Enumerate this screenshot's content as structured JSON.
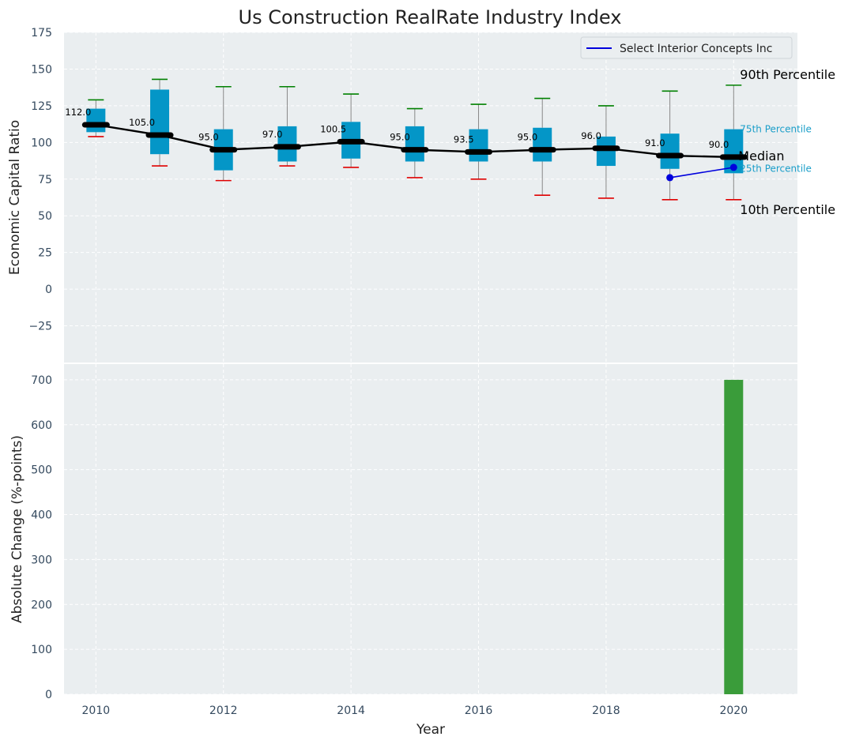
{
  "colors": {
    "panel_bg": "#eaeef0",
    "grid": "#ffffff",
    "box": "#0496c7",
    "whisker": "#888888",
    "cap_high": "#008000",
    "cap_low": "#e00000",
    "median_line": "#000000",
    "company_line": "#0000dd",
    "bar": "#3a9c3a",
    "pct_small_text": "#1a9ec9"
  },
  "chart_data": [
    {
      "type": "box",
      "title": "Us Construction RealRate Industry Index",
      "xlabel": "",
      "ylabel": "Economic Capital Ratio",
      "xlim": [
        2009.5,
        2021
      ],
      "ylim": [
        -50,
        175
      ],
      "yticks": [
        -25,
        0,
        25,
        50,
        75,
        100,
        125,
        150,
        175
      ],
      "ytick_labels": [
        "−25",
        "0",
        "25",
        "50",
        "75",
        "100",
        "125",
        "150",
        "175"
      ],
      "grid": true,
      "years": [
        2010,
        2011,
        2012,
        2013,
        2014,
        2015,
        2016,
        2017,
        2018,
        2019,
        2020
      ],
      "p10": [
        104,
        84,
        74,
        84,
        83,
        76,
        75,
        64,
        62,
        61,
        61
      ],
      "q1": [
        107,
        92,
        81,
        87,
        89,
        87,
        87,
        87,
        84,
        82,
        79
      ],
      "median": [
        112.0,
        105.0,
        95.0,
        97.0,
        100.5,
        95.0,
        93.5,
        95.0,
        96.0,
        91.0,
        90.0
      ],
      "median_labels": [
        "112.0",
        "105.0",
        "95.0",
        "97.0",
        "100.5",
        "95.0",
        "93.5",
        "95.0",
        "96.0",
        "91.0",
        "90.0"
      ],
      "q3": [
        123,
        136,
        109,
        111,
        114,
        111,
        109,
        110,
        104,
        106,
        109
      ],
      "p90": [
        129,
        143,
        138,
        138,
        133,
        123,
        126,
        130,
        125,
        135,
        139
      ],
      "company_series": {
        "name": "Select Interior Concepts Inc",
        "x": [
          2019,
          2020
        ],
        "values": [
          76,
          83
        ]
      },
      "legend_position": "top-right",
      "annotations": {
        "p90": "90th Percentile",
        "q3": "75th Percentile",
        "median": "Median",
        "q1": "25th Percentile",
        "p10": "10th Percentile"
      }
    },
    {
      "type": "bar",
      "title": "",
      "xlabel": "Year",
      "ylabel": "Absolute Change (%-points)",
      "xlim": [
        2009.5,
        2021
      ],
      "ylim": [
        0,
        735
      ],
      "xticks": [
        2010,
        2012,
        2014,
        2016,
        2018,
        2020
      ],
      "yticks": [
        0,
        100,
        200,
        300,
        400,
        500,
        600,
        700
      ],
      "grid": true,
      "x": [
        2020
      ],
      "values": [
        700
      ]
    }
  ]
}
